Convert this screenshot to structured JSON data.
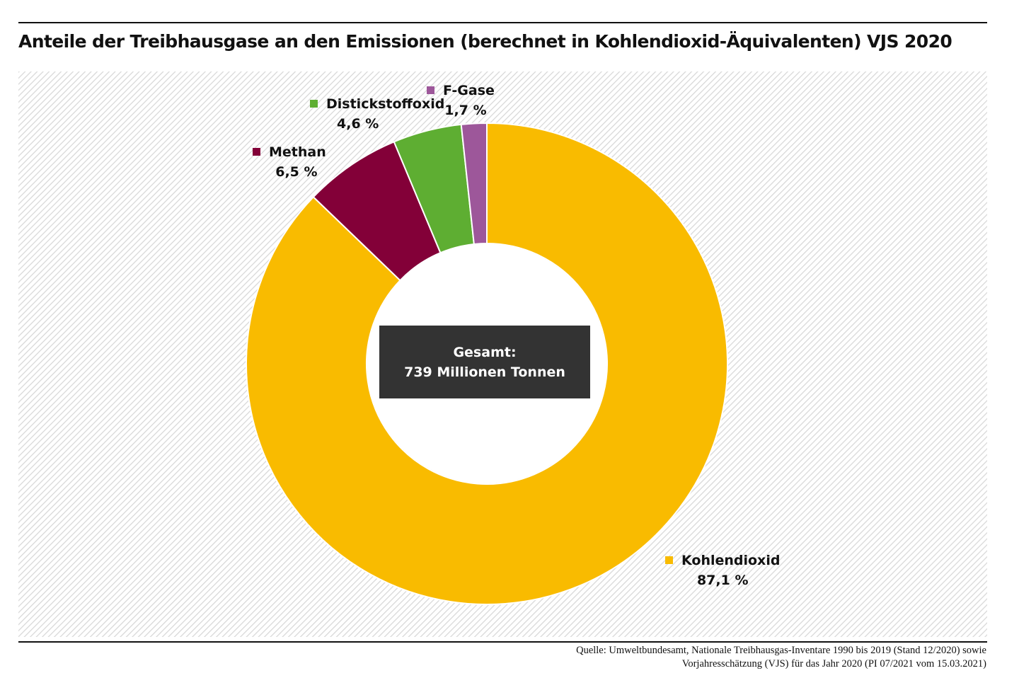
{
  "chart_data": {
    "type": "pie",
    "variant": "donut",
    "title": "Anteile der Treibhausgase an den Emissionen (berechnet in Kohlendioxid-Äquivalenten) VJS 2020",
    "center_label": [
      "Gesamt:",
      "739 Millionen Tonnen"
    ],
    "unit": "%",
    "slices": [
      {
        "name": "Kohlendioxid",
        "value": 87.1,
        "label": "87,1 %",
        "color": "#f9bb00"
      },
      {
        "name": "Methan",
        "value": 6.5,
        "label": "6,5 %",
        "color": "#830038"
      },
      {
        "name": "Distickstoffoxid",
        "value": 4.6,
        "label": "4,6 %",
        "color": "#5eae32"
      },
      {
        "name": "F-Gase",
        "value": 1.7,
        "label": "1,7 %",
        "color": "#9d579a"
      }
    ],
    "start_angle": "top",
    "direction": "clockwise",
    "source": [
      "Quelle: Umweltbundesamt, Nationale Treibhausgas-Inventare 1990 bis 2019 (Stand 12/2020) sowie",
      "Vorjahresschätzung (VJS) für das Jahr 2020 (PI 07/2021 vom 15.03.2021)"
    ]
  }
}
